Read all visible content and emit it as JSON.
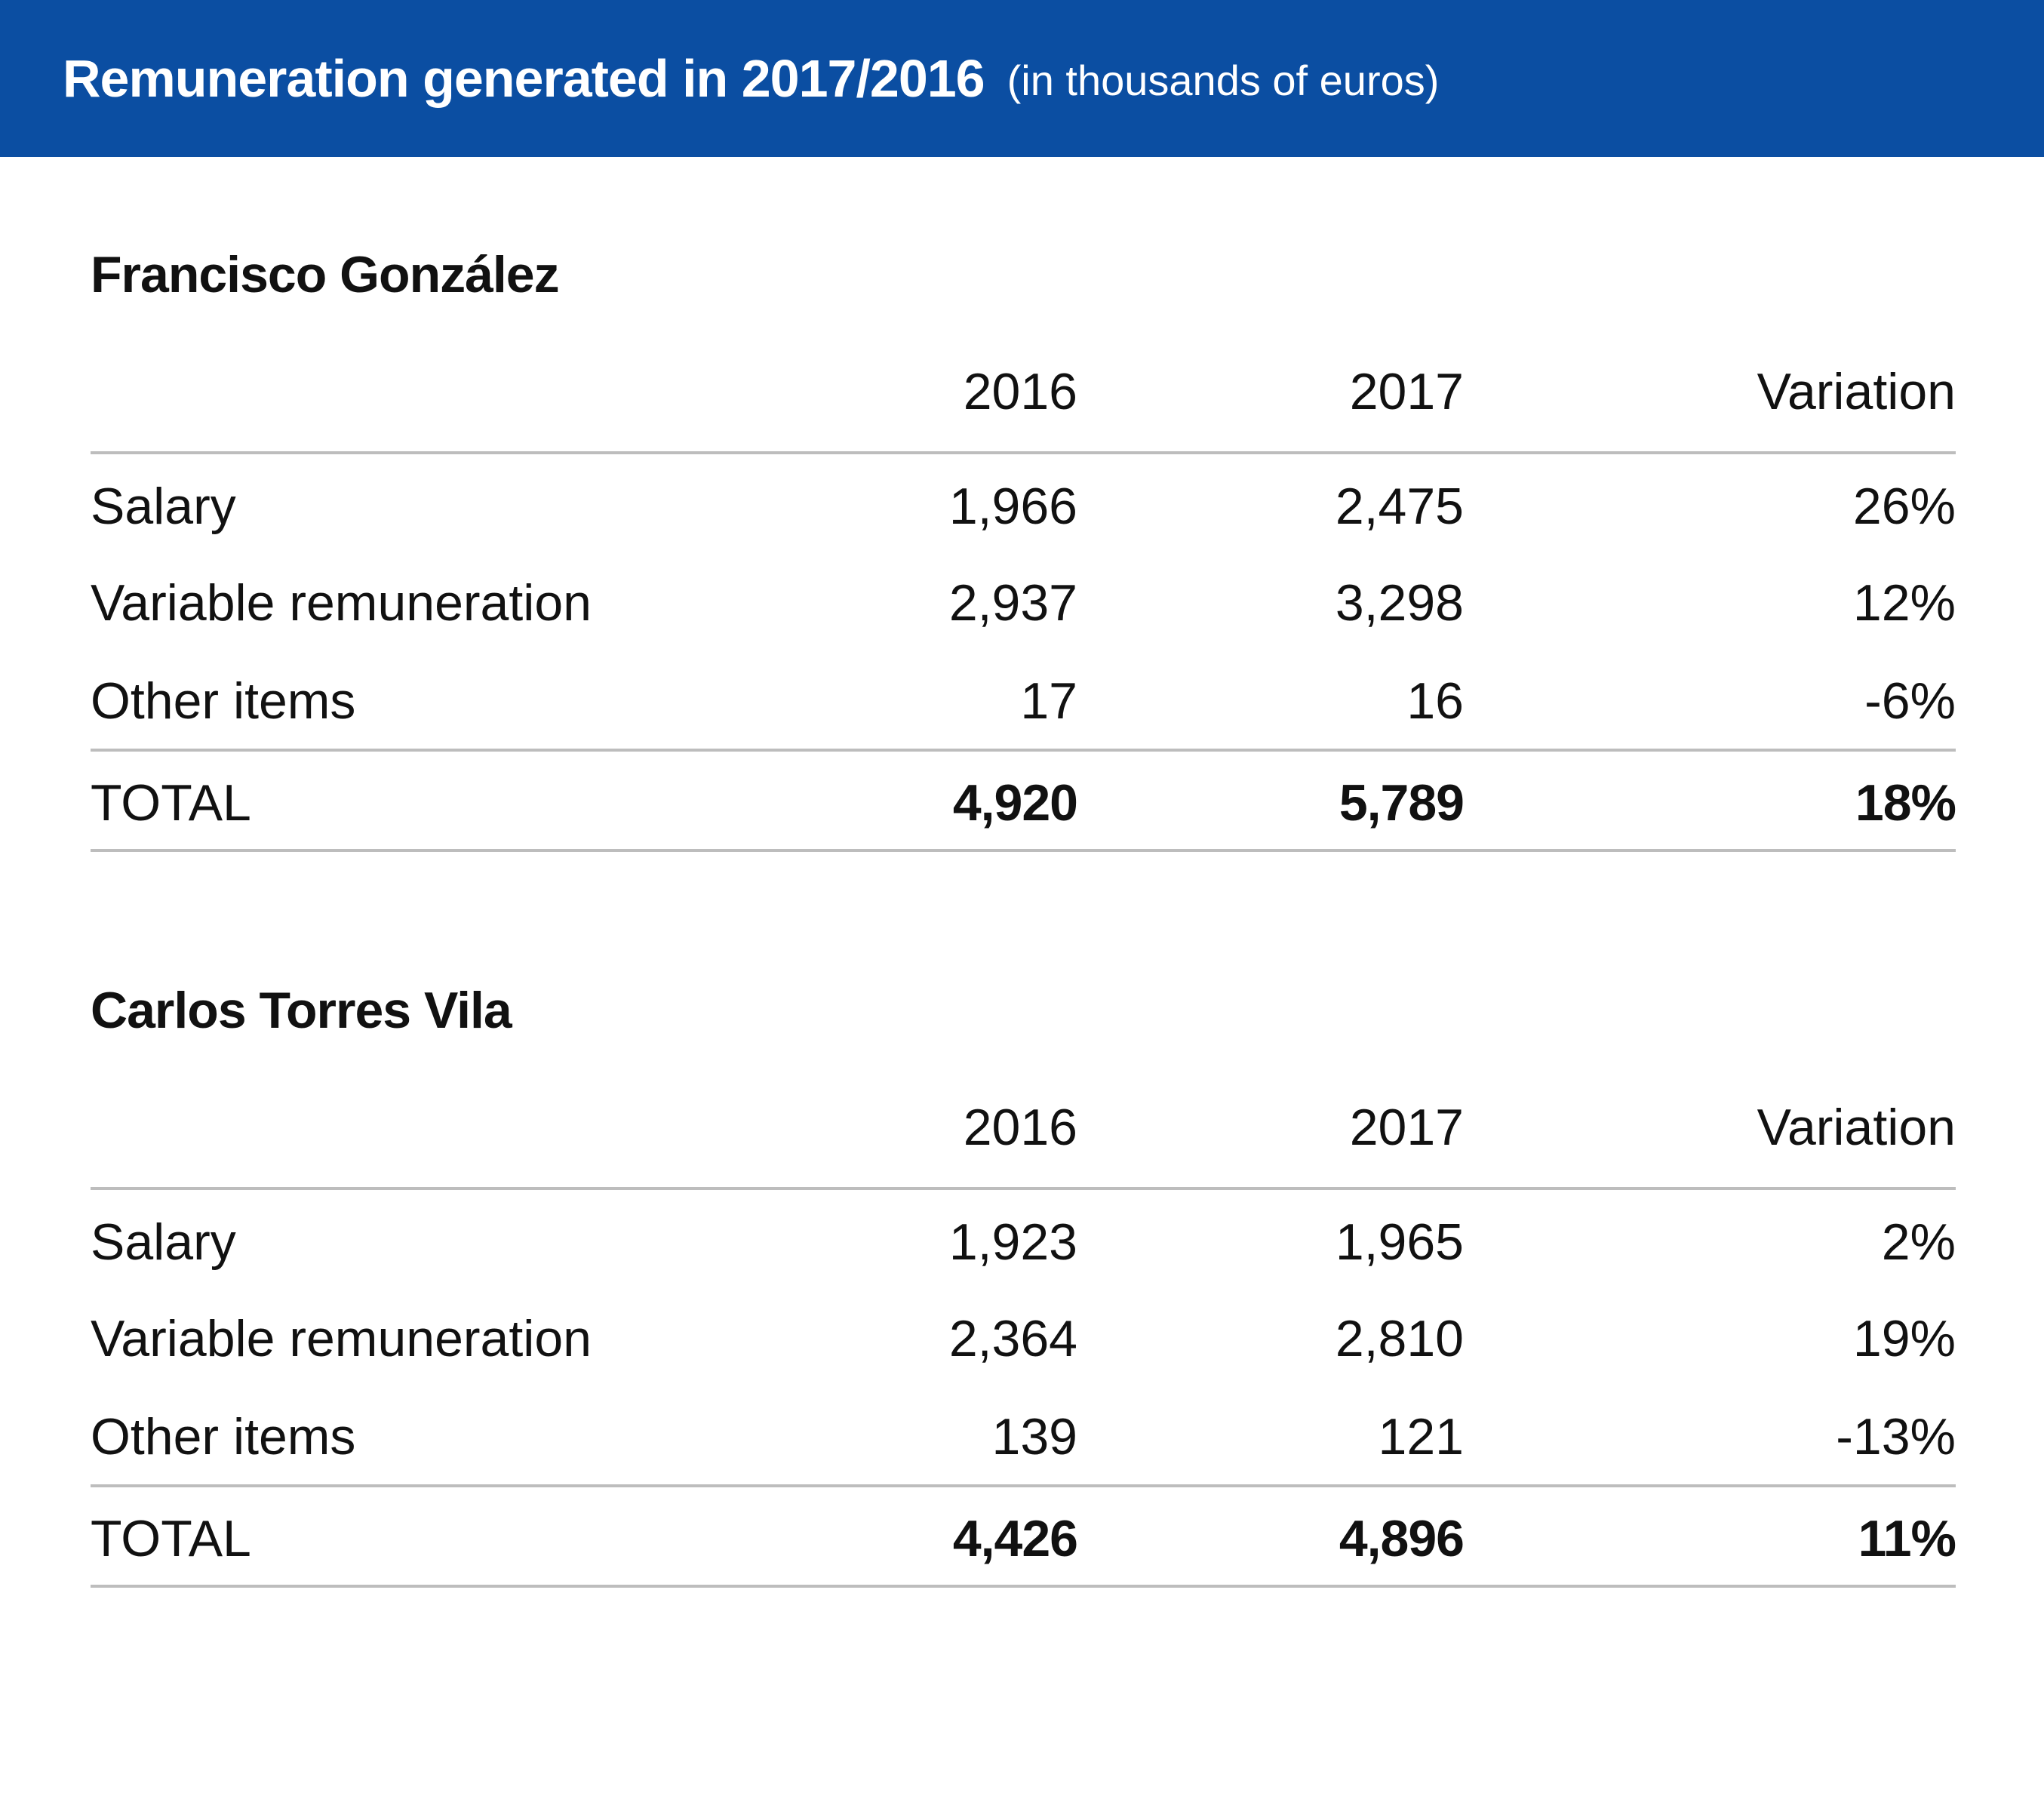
{
  "header": {
    "title": "Remuneration generated in 2017/2016",
    "subtitle": "(in thousands of euros)"
  },
  "columns": {
    "y2016": "2016",
    "y2017": "2017",
    "variation": "Variation"
  },
  "tables": [
    {
      "name": "Francisco González",
      "rows": [
        {
          "label": "Salary",
          "v2016": "1,966",
          "v2017": "2,475",
          "variation": "26%"
        },
        {
          "label": "Variable remuneration",
          "v2016": "2,937",
          "v2017": "3,298",
          "variation": "12%"
        },
        {
          "label": "Other items",
          "v2016": "17",
          "v2017": "16",
          "variation": "-6%"
        }
      ],
      "total": {
        "label": "TOTAL",
        "v2016": "4,920",
        "v2017": "5,789",
        "variation": "18%"
      }
    },
    {
      "name": "Carlos Torres Vila",
      "rows": [
        {
          "label": "Salary",
          "v2016": "1,923",
          "v2017": "1,965",
          "variation": "2%"
        },
        {
          "label": "Variable remuneration",
          "v2016": "2,364",
          "v2017": "2,810",
          "variation": "19%"
        },
        {
          "label": "Other items",
          "v2016": "139",
          "v2017": "121",
          "variation": "-13%"
        }
      ],
      "total": {
        "label": "TOTAL",
        "v2016": "4,426",
        "v2017": "4,896",
        "variation": "11%"
      }
    }
  ],
  "chart_data": {
    "type": "table",
    "title": "Remuneration generated in 2017/2016",
    "subtitle": "(in thousands of euros)",
    "columns": [
      "",
      "2016",
      "2017",
      "Variation"
    ],
    "tables": [
      {
        "name": "Francisco González",
        "rows": [
          [
            "Salary",
            1966,
            2475,
            "26%"
          ],
          [
            "Variable remuneration",
            2937,
            3298,
            "12%"
          ],
          [
            "Other items",
            17,
            16,
            "-6%"
          ],
          [
            "TOTAL",
            4920,
            5789,
            "18%"
          ]
        ]
      },
      {
        "name": "Carlos Torres Vila",
        "rows": [
          [
            "Salary",
            1923,
            1965,
            "2%"
          ],
          [
            "Variable remuneration",
            2364,
            2810,
            "19%"
          ],
          [
            "Other items",
            139,
            121,
            "-13%"
          ],
          [
            "TOTAL",
            4426,
            4896,
            "11%"
          ]
        ]
      }
    ]
  }
}
